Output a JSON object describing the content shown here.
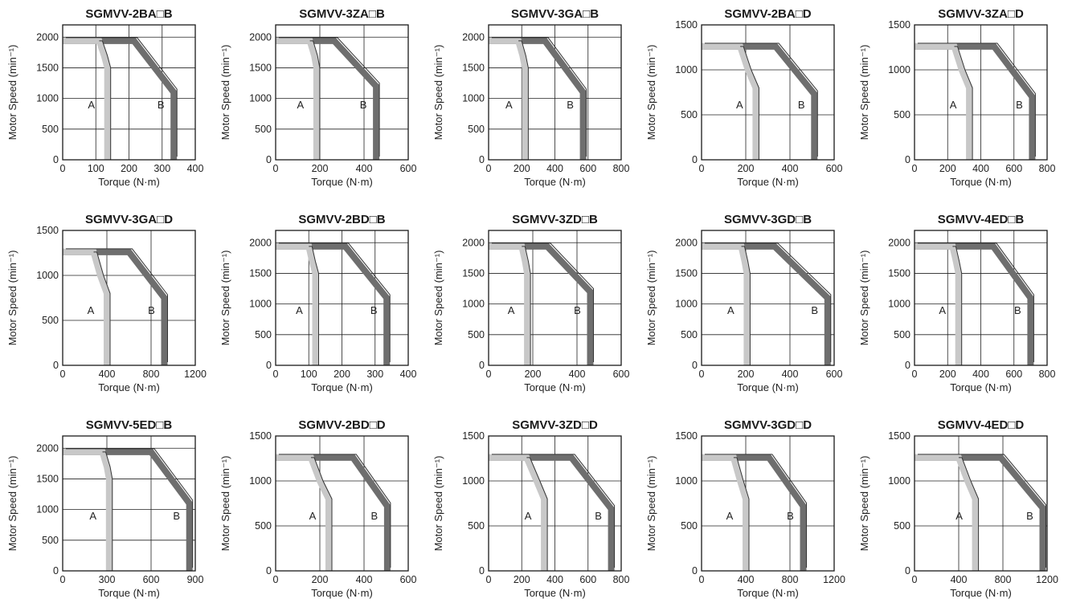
{
  "common": {
    "xlabel": "Torque (N·m)",
    "ylabel": "Motor Speed (min⁻¹)",
    "region_a_label": "A",
    "region_b_label": "B",
    "colors": {
      "region_a": "#c8c8c8",
      "region_b": "#6e6e6e",
      "frame": "#1a1a1a",
      "grid": "#222222"
    }
  },
  "chart_data": [
    {
      "type": "line",
      "title": "SGMVV-2BA□B",
      "xlabel": "Torque (N·m)",
      "ylabel": "Motor Speed (min⁻¹)",
      "xlim": [
        0,
        400
      ],
      "ylim": [
        0,
        2200
      ],
      "xticks": [
        0,
        100,
        200,
        300,
        400
      ],
      "yticks": [
        0,
        500,
        1000,
        1500,
        2000
      ],
      "series": [
        {
          "name": "A",
          "x": [
            0,
            110,
            125,
            135,
            135
          ],
          "y": [
            1940,
            1940,
            1700,
            1500,
            0
          ]
        },
        {
          "name": "B",
          "x": [
            0,
            215,
            335,
            335
          ],
          "y": [
            1940,
            1940,
            1100,
            0
          ]
        }
      ]
    },
    {
      "type": "line",
      "title": "SGMVV-3ZA□B",
      "xlabel": "Torque (N·m)",
      "ylabel": "Motor Speed (min⁻¹)",
      "xlim": [
        0,
        600
      ],
      "ylim": [
        0,
        2200
      ],
      "xticks": [
        0,
        200,
        400,
        600
      ],
      "yticks": [
        0,
        500,
        1000,
        1500,
        2000
      ],
      "series": [
        {
          "name": "A",
          "x": [
            0,
            155,
            175,
            185,
            185
          ],
          "y": [
            1940,
            1940,
            1700,
            1500,
            0
          ]
        },
        {
          "name": "B",
          "x": [
            0,
            265,
            455,
            455
          ],
          "y": [
            1940,
            1940,
            1200,
            0
          ]
        }
      ]
    },
    {
      "type": "line",
      "title": "SGMVV-3GA□B",
      "xlabel": "Torque (N·m)",
      "ylabel": "Motor Speed (min⁻¹)",
      "xlim": [
        0,
        800
      ],
      "ylim": [
        0,
        2200
      ],
      "xticks": [
        0,
        200,
        400,
        600,
        800
      ],
      "yticks": [
        0,
        500,
        1000,
        1500,
        2000
      ],
      "series": [
        {
          "name": "A",
          "x": [
            0,
            180,
            205,
            220,
            220
          ],
          "y": [
            1940,
            1940,
            1700,
            1500,
            0
          ]
        },
        {
          "name": "B",
          "x": [
            0,
            340,
            570,
            570
          ],
          "y": [
            1940,
            1940,
            1100,
            0
          ]
        }
      ]
    },
    {
      "type": "line",
      "title": "SGMVV-2BA□D",
      "xlabel": "Torque (N·m)",
      "ylabel": "Motor Speed (min⁻¹)",
      "xlim": [
        0,
        600
      ],
      "ylim": [
        0,
        1500
      ],
      "xticks": [
        0,
        200,
        400,
        600
      ],
      "yticks": [
        0,
        500,
        1000,
        1500
      ],
      "series": [
        {
          "name": "A",
          "x": [
            0,
            175,
            210,
            245,
            245
          ],
          "y": [
            1260,
            1260,
            1000,
            800,
            0
          ]
        },
        {
          "name": "B",
          "x": [
            0,
            335,
            510,
            510
          ],
          "y": [
            1260,
            1260,
            730,
            0
          ]
        }
      ]
    },
    {
      "type": "line",
      "title": "SGMVV-3ZA□D",
      "xlabel": "Torque (N·m)",
      "ylabel": "Motor Speed (min⁻¹)",
      "xlim": [
        0,
        800
      ],
      "ylim": [
        0,
        1500
      ],
      "xticks": [
        0,
        200,
        400,
        600,
        800
      ],
      "yticks": [
        0,
        500,
        1000,
        1500
      ],
      "series": [
        {
          "name": "A",
          "x": [
            0,
            240,
            285,
            330,
            330
          ],
          "y": [
            1260,
            1260,
            1000,
            800,
            0
          ]
        },
        {
          "name": "B",
          "x": [
            0,
            480,
            710,
            710
          ],
          "y": [
            1260,
            1260,
            700,
            0
          ]
        }
      ]
    },
    {
      "type": "line",
      "title": "SGMVV-3GA□D",
      "xlabel": "Torque (N·m)",
      "ylabel": "Motor Speed (min⁻¹)",
      "xlim": [
        0,
        1200
      ],
      "ylim": [
        0,
        1500
      ],
      "xticks": [
        0,
        400,
        800,
        1200
      ],
      "yticks": [
        0,
        500,
        1000,
        1500
      ],
      "series": [
        {
          "name": "A",
          "x": [
            0,
            280,
            340,
            400,
            400
          ],
          "y": [
            1260,
            1260,
            1000,
            800,
            0
          ]
        },
        {
          "name": "B",
          "x": [
            0,
            600,
            920,
            920
          ],
          "y": [
            1260,
            1260,
            750,
            0
          ]
        }
      ]
    },
    {
      "type": "line",
      "title": "SGMVV-2BD□B",
      "xlabel": "Torque (N·m)",
      "ylabel": "Motor Speed (min⁻¹)",
      "xlim": [
        0,
        400
      ],
      "ylim": [
        0,
        2200
      ],
      "xticks": [
        0,
        100,
        200,
        300,
        400
      ],
      "yticks": [
        0,
        500,
        1000,
        1500,
        2000
      ],
      "series": [
        {
          "name": "A",
          "x": [
            0,
            100,
            110,
            120,
            120
          ],
          "y": [
            1940,
            1940,
            1700,
            1500,
            0
          ]
        },
        {
          "name": "B",
          "x": [
            0,
            210,
            335,
            335
          ],
          "y": [
            1940,
            1940,
            1100,
            0
          ]
        }
      ]
    },
    {
      "type": "line",
      "title": "SGMVV-3ZD□B",
      "xlabel": "Torque (N·m)",
      "ylabel": "Motor Speed (min⁻¹)",
      "xlim": [
        0,
        600
      ],
      "ylim": [
        0,
        2200
      ],
      "xticks": [
        0,
        200,
        400,
        600
      ],
      "yticks": [
        0,
        500,
        1000,
        1500,
        2000
      ],
      "series": [
        {
          "name": "A",
          "x": [
            0,
            150,
            165,
            175,
            175
          ],
          "y": [
            1940,
            1940,
            1700,
            1500,
            0
          ]
        },
        {
          "name": "B",
          "x": [
            0,
            265,
            460,
            460
          ],
          "y": [
            1940,
            1940,
            1200,
            0
          ]
        }
      ]
    },
    {
      "type": "line",
      "title": "SGMVV-3GD□B",
      "xlabel": "Torque (N·m)",
      "ylabel": "Motor Speed (min⁻¹)",
      "xlim": [
        0,
        600
      ],
      "ylim": [
        0,
        2200
      ],
      "xticks": [
        0,
        200,
        400,
        600
      ],
      "yticks": [
        0,
        500,
        1000,
        1500,
        2000
      ],
      "series": [
        {
          "name": "A",
          "x": [
            0,
            180,
            195,
            205,
            205
          ],
          "y": [
            1940,
            1940,
            1700,
            1500,
            0
          ]
        },
        {
          "name": "B",
          "x": [
            0,
            330,
            570,
            570
          ],
          "y": [
            1940,
            1940,
            1100,
            0
          ]
        }
      ]
    },
    {
      "type": "line",
      "title": "SGMVV-4ED□B",
      "xlabel": "Torque (N·m)",
      "ylabel": "Motor Speed (min⁻¹)",
      "xlim": [
        0,
        800
      ],
      "ylim": [
        0,
        2200
      ],
      "xticks": [
        0,
        200,
        400,
        600,
        800
      ],
      "yticks": [
        0,
        500,
        1000,
        1500,
        2000
      ],
      "series": [
        {
          "name": "A",
          "x": [
            0,
            230,
            250,
            265,
            265
          ],
          "y": [
            1940,
            1940,
            1700,
            1500,
            0
          ]
        },
        {
          "name": "B",
          "x": [
            0,
            475,
            700,
            700
          ],
          "y": [
            1940,
            1940,
            1100,
            0
          ]
        }
      ]
    },
    {
      "type": "line",
      "title": "SGMVV-5ED□B",
      "xlabel": "Torque (N·m)",
      "ylabel": "Motor Speed (min⁻¹)",
      "xlim": [
        0,
        900
      ],
      "ylim": [
        0,
        2200
      ],
      "xticks": [
        0,
        300,
        600,
        900
      ],
      "yticks": [
        0,
        500,
        1000,
        1500,
        2000
      ],
      "series": [
        {
          "name": "A",
          "x": [
            0,
            270,
            300,
            315,
            315
          ],
          "y": [
            1940,
            1940,
            1700,
            1500,
            0
          ]
        },
        {
          "name": "B",
          "x": [
            0,
            600,
            860,
            860
          ],
          "y": [
            1940,
            1940,
            1100,
            0
          ]
        }
      ]
    },
    {
      "type": "line",
      "title": "SGMVV-2BD□D",
      "xlabel": "Torque (N·m)",
      "ylabel": "Motor Speed (min⁻¹)",
      "xlim": [
        0,
        600
      ],
      "ylim": [
        0,
        1500
      ],
      "xticks": [
        0,
        200,
        400,
        600
      ],
      "yticks": [
        0,
        500,
        1000,
        1500
      ],
      "series": [
        {
          "name": "A",
          "x": [
            0,
            160,
            200,
            240,
            240
          ],
          "y": [
            1260,
            1260,
            1000,
            800,
            0
          ]
        },
        {
          "name": "B",
          "x": [
            0,
            350,
            505,
            505
          ],
          "y": [
            1260,
            1260,
            720,
            0
          ]
        }
      ]
    },
    {
      "type": "line",
      "title": "SGMVV-3ZD□D",
      "xlabel": "Torque (N·m)",
      "ylabel": "Motor Speed (min⁻¹)",
      "xlim": [
        0,
        800
      ],
      "ylim": [
        0,
        1500
      ],
      "xticks": [
        0,
        200,
        400,
        600,
        800
      ],
      "yticks": [
        0,
        500,
        1000,
        1500
      ],
      "series": [
        {
          "name": "A",
          "x": [
            0,
            230,
            290,
            335,
            335
          ],
          "y": [
            1260,
            1260,
            1000,
            800,
            0
          ]
        },
        {
          "name": "B",
          "x": [
            0,
            500,
            740,
            740
          ],
          "y": [
            1260,
            1260,
            690,
            0
          ]
        }
      ]
    },
    {
      "type": "line",
      "title": "SGMVV-3GD□D",
      "xlabel": "Torque (N·m)",
      "ylabel": "Motor Speed (min⁻¹)",
      "xlim": [
        0,
        1200
      ],
      "ylim": [
        0,
        1500
      ],
      "xticks": [
        0,
        400,
        800,
        1200
      ],
      "yticks": [
        0,
        500,
        1000,
        1500
      ],
      "series": [
        {
          "name": "A",
          "x": [
            0,
            290,
            350,
            400,
            400
          ],
          "y": [
            1260,
            1260,
            1000,
            800,
            0
          ]
        },
        {
          "name": "B",
          "x": [
            0,
            610,
            920,
            920
          ],
          "y": [
            1260,
            1260,
            720,
            0
          ]
        }
      ]
    },
    {
      "type": "line",
      "title": "SGMVV-4ED□D",
      "xlabel": "Torque (N·m)",
      "ylabel": "Motor Speed (min⁻¹)",
      "xlim": [
        0,
        1200
      ],
      "ylim": [
        0,
        1500
      ],
      "xticks": [
        0,
        400,
        800,
        1200
      ],
      "yticks": [
        0,
        500,
        1000,
        1500
      ],
      "series": [
        {
          "name": "A",
          "x": [
            0,
            400,
            480,
            550,
            550
          ],
          "y": [
            1260,
            1260,
            1000,
            800,
            0
          ]
        },
        {
          "name": "B",
          "x": [
            0,
            780,
            1160,
            1160
          ],
          "y": [
            1260,
            1260,
            700,
            0
          ]
        }
      ]
    }
  ]
}
